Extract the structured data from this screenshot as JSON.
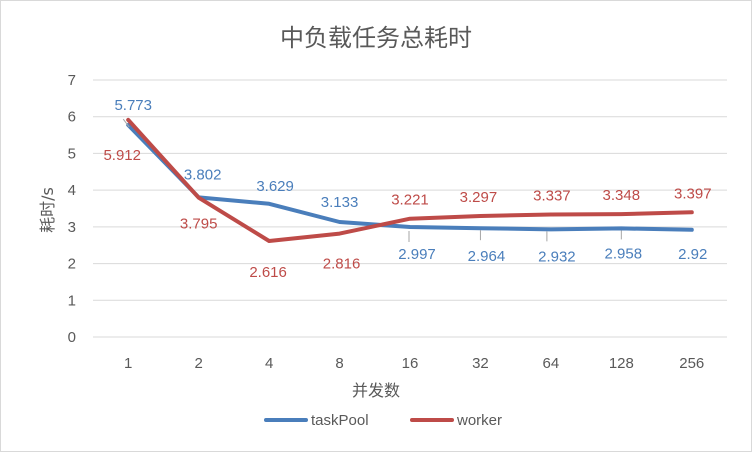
{
  "chart_data": {
    "type": "line",
    "title": "中负载任务总耗时",
    "xlabel": "并发数",
    "ylabel": "耗时/s",
    "categories": [
      "1",
      "2",
      "4",
      "8",
      "16",
      "32",
      "64",
      "128",
      "256"
    ],
    "ylim": [
      0,
      7
    ],
    "yticks": [
      "0",
      "1",
      "2",
      "3",
      "4",
      "5",
      "6",
      "7"
    ],
    "grid": true,
    "legend_position": "bottom",
    "series": [
      {
        "name": "taskPool",
        "color": "#4a7ebb",
        "values": [
          5.773,
          3.802,
          3.629,
          3.133,
          2.997,
          2.964,
          2.932,
          2.958,
          2.92
        ],
        "labels": [
          "5.773",
          "3.802",
          "3.629",
          "3.133",
          "2.997",
          "2.964",
          "2.932",
          "2.958",
          "2.92"
        ]
      },
      {
        "name": "worker",
        "color": "#be4b48",
        "values": [
          5.912,
          3.795,
          2.616,
          2.816,
          3.221,
          3.297,
          3.337,
          3.348,
          3.397
        ],
        "labels": [
          "5.912",
          "3.795",
          "2.616",
          "2.816",
          "3.221",
          "3.297",
          "3.337",
          "3.348",
          "3.397"
        ]
      }
    ]
  }
}
